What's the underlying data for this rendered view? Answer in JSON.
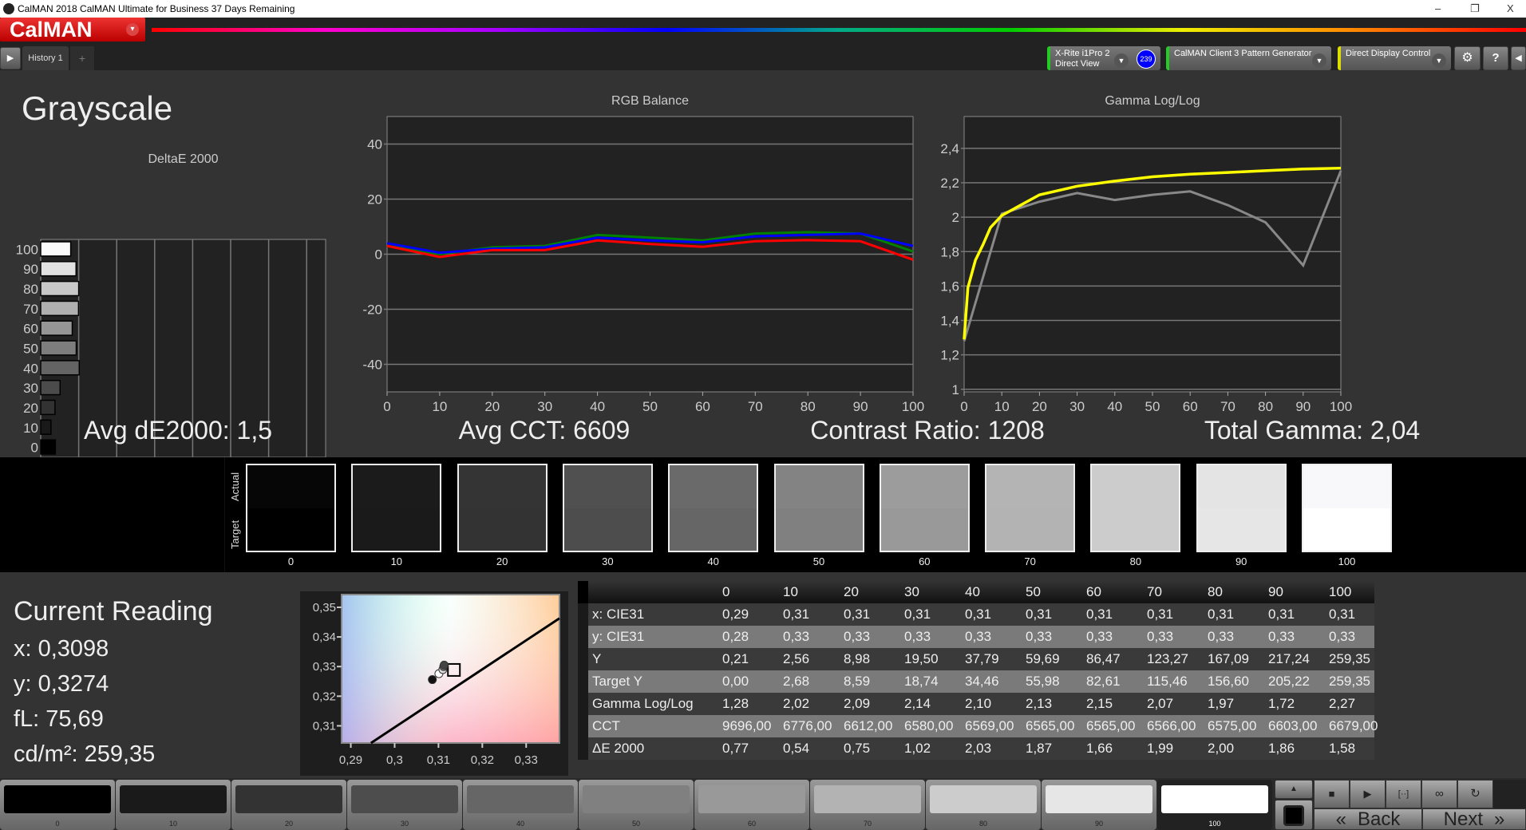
{
  "window": {
    "title": "CalMAN 2018 CalMAN Ultimate for Business 37 Days Remaining",
    "minimize": "–",
    "restore": "❐",
    "close": "X"
  },
  "logo": {
    "text": "CalMAN",
    "dropdown": "▾"
  },
  "tabs": {
    "items": [
      {
        "label": "History 1"
      }
    ],
    "add": "+",
    "play": "▶"
  },
  "devices": {
    "meter": {
      "line1": "X-Rite i1Pro 2",
      "line2": "Direct View",
      "badge": "239",
      "accent": "#22cc22"
    },
    "pattern": {
      "label": "CalMAN Client 3 Pattern Generator",
      "accent": "#22cc22"
    },
    "display": {
      "label": "Direct Display Control",
      "accent": "#dddd00"
    },
    "settings_icon": "gear-icon",
    "help": "?",
    "collapse": "◀"
  },
  "page": {
    "title": "Grayscale"
  },
  "stats": {
    "avg_de": "Avg dE2000: 1,5",
    "avg_cct": "Avg CCT: 6609",
    "contrast": "Contrast Ratio: 1208",
    "gamma": "Total Gamma: 2,04"
  },
  "chart_data": [
    {
      "type": "bar",
      "orientation": "horizontal",
      "title": "DeltaE 2000",
      "categories": [
        "0",
        "10",
        "20",
        "30",
        "40",
        "50",
        "60",
        "70",
        "80",
        "90",
        "100"
      ],
      "values": [
        0.77,
        0.54,
        0.75,
        1.02,
        2.03,
        1.87,
        1.66,
        1.99,
        2.0,
        1.86,
        1.58
      ],
      "xlim": [
        0,
        15
      ],
      "xticks": [
        "0",
        "2",
        "4",
        "6",
        "8",
        "10",
        "12",
        "14"
      ],
      "grid": true
    },
    {
      "type": "line",
      "title": "RGB Balance",
      "x": [
        0,
        10,
        20,
        30,
        40,
        50,
        60,
        70,
        80,
        90,
        100
      ],
      "ylim": [
        -50,
        50
      ],
      "yticks": [
        "40",
        "20",
        "0",
        "-20",
        "-40"
      ],
      "xticks": [
        "0",
        "10",
        "20",
        "30",
        "40",
        "50",
        "60",
        "70",
        "80",
        "90",
        "100"
      ],
      "grid": true,
      "series": [
        {
          "color": "#008000",
          "values": [
            3,
            0,
            2.5,
            3,
            7,
            6,
            5,
            7.5,
            8,
            7.5,
            1
          ]
        },
        {
          "color": "#0000ff",
          "values": [
            4,
            0.5,
            2,
            2.5,
            6,
            5,
            4.3,
            6.5,
            7,
            7.5,
            3
          ]
        },
        {
          "color": "#ff0000",
          "values": [
            3,
            -1,
            1.5,
            1.5,
            5,
            3.7,
            2.7,
            4.7,
            5.1,
            4.7,
            -2
          ]
        }
      ]
    },
    {
      "type": "line",
      "title": "Gamma Log/Log",
      "xlim": [
        0,
        100
      ],
      "ylim": [
        0.985,
        2.585
      ],
      "yticks": [
        "2,4",
        "2,2",
        "2",
        "1,8",
        "1,6",
        "1,4",
        "1,2",
        "1"
      ],
      "xticks": [
        "0",
        "10",
        "20",
        "30",
        "40",
        "50",
        "60",
        "70",
        "80",
        "90",
        "100"
      ],
      "grid": true,
      "series": [
        {
          "color": "#888888",
          "x": [
            0,
            10,
            20,
            30,
            40,
            50,
            60,
            70,
            80,
            90,
            100
          ],
          "values": [
            1.28,
            2.02,
            2.09,
            2.14,
            2.1,
            2.13,
            2.15,
            2.07,
            1.97,
            1.72,
            2.27
          ]
        },
        {
          "color": "#ffff00",
          "x": [
            0,
            1,
            3,
            5,
            7,
            10,
            15,
            20,
            30,
            40,
            50,
            60,
            70,
            80,
            90,
            100
          ],
          "values": [
            1.29,
            1.59,
            1.75,
            1.84,
            1.94,
            2.01,
            2.07,
            2.13,
            2.18,
            2.21,
            2.235,
            2.25,
            2.26,
            2.27,
            2.28,
            2.285
          ]
        }
      ]
    },
    {
      "type": "scatter",
      "xlim": [
        0.2879,
        0.3376
      ],
      "ylim": [
        0.3042,
        0.3543
      ],
      "xticks": [
        "0,29",
        "0,3",
        "0,31",
        "0,32",
        "0,33"
      ],
      "yticks": [
        "0,35",
        "0,34",
        "0,33",
        "0,32",
        "0,31"
      ],
      "points": [
        {
          "x": 0.3086,
          "y": 0.3256,
          "color": "#111111"
        },
        {
          "x": 0.3101,
          "y": 0.3276,
          "color": "#ffffff"
        },
        {
          "x": 0.311,
          "y": 0.329,
          "color": "#dddddd"
        },
        {
          "x": 0.3112,
          "y": 0.33,
          "color": "#888888"
        },
        {
          "x": 0.3113,
          "y": 0.3305,
          "color": "#444444"
        }
      ],
      "target": {
        "x": 0.3127,
        "y": 0.329
      },
      "locus": [
        [
          0.2946,
          0.3042
        ],
        [
          0.3378,
          0.3463
        ]
      ]
    }
  ],
  "swatches": {
    "actual_label": "Actual",
    "target_label": "Target",
    "items": [
      {
        "label": "0",
        "actual": "#060606",
        "target": "#000000"
      },
      {
        "label": "10",
        "actual": "#1b1b1b",
        "target": "#1a1a1a"
      },
      {
        "label": "20",
        "actual": "#343434",
        "target": "#333333"
      },
      {
        "label": "30",
        "actual": "#505050",
        "target": "#4d4d4d"
      },
      {
        "label": "40",
        "actual": "#6a6a6a",
        "target": "#666666"
      },
      {
        "label": "50",
        "actual": "#838383",
        "target": "#808080"
      },
      {
        "label": "60",
        "actual": "#9c9c9c",
        "target": "#999999"
      },
      {
        "label": "70",
        "actual": "#b4b4b4",
        "target": "#b3b3b3"
      },
      {
        "label": "80",
        "actual": "#cccccc",
        "target": "#cccccc"
      },
      {
        "label": "90",
        "actual": "#e4e4e4",
        "target": "#e6e6e6"
      },
      {
        "label": "100",
        "actual": "#f8f8fa",
        "target": "#ffffff"
      }
    ]
  },
  "reading": {
    "title": "Current Reading",
    "x": "x: 0,3098",
    "y": "y: 0,3274",
    "fl": "fL: 75,69",
    "cdm2": "cd/m²: 259,35"
  },
  "table": {
    "columns": [
      "0",
      "10",
      "20",
      "30",
      "40",
      "50",
      "60",
      "70",
      "80",
      "90",
      "100"
    ],
    "rows": [
      {
        "label": "x: CIE31",
        "values": [
          "0,29",
          "0,31",
          "0,31",
          "0,31",
          "0,31",
          "0,31",
          "0,31",
          "0,31",
          "0,31",
          "0,31",
          "0,31"
        ]
      },
      {
        "label": "y: CIE31",
        "values": [
          "0,28",
          "0,33",
          "0,33",
          "0,33",
          "0,33",
          "0,33",
          "0,33",
          "0,33",
          "0,33",
          "0,33",
          "0,33"
        ]
      },
      {
        "label": "Y",
        "values": [
          "0,21",
          "2,56",
          "8,98",
          "19,50",
          "37,79",
          "59,69",
          "86,47",
          "123,27",
          "167,09",
          "217,24",
          "259,35"
        ]
      },
      {
        "label": "Target Y",
        "values": [
          "0,00",
          "2,68",
          "8,59",
          "18,74",
          "34,46",
          "55,98",
          "82,61",
          "115,46",
          "156,60",
          "205,22",
          "259,35"
        ]
      },
      {
        "label": "Gamma Log/Log",
        "values": [
          "1,28",
          "2,02",
          "2,09",
          "2,14",
          "2,10",
          "2,13",
          "2,15",
          "2,07",
          "1,97",
          "1,72",
          "2,27"
        ]
      },
      {
        "label": "CCT",
        "values": [
          "9696,00",
          "6776,00",
          "6612,00",
          "6580,00",
          "6569,00",
          "6565,00",
          "6565,00",
          "6566,00",
          "6575,00",
          "6603,00",
          "6679,00"
        ]
      },
      {
        "label": "ΔE 2000",
        "values": [
          "0,77",
          "0,54",
          "0,75",
          "1,02",
          "2,03",
          "1,87",
          "1,66",
          "1,99",
          "2,00",
          "1,86",
          "1,58"
        ]
      }
    ]
  },
  "footer": {
    "selected": "100",
    "items": [
      {
        "label": "0",
        "color": "#000000"
      },
      {
        "label": "10",
        "color": "#1a1a1a"
      },
      {
        "label": "20",
        "color": "#333333"
      },
      {
        "label": "30",
        "color": "#4d4d4d"
      },
      {
        "label": "40",
        "color": "#666666"
      },
      {
        "label": "50",
        "color": "#808080"
      },
      {
        "label": "60",
        "color": "#999999"
      },
      {
        "label": "70",
        "color": "#b3b3b3"
      },
      {
        "label": "80",
        "color": "#cccccc"
      },
      {
        "label": "90",
        "color": "#e6e6e6"
      },
      {
        "label": "100",
        "color": "#ffffff"
      }
    ],
    "back": "Back",
    "next": "Next",
    "back_icon": "«",
    "next_icon": "»",
    "stop": "■",
    "play": "▶",
    "range": "[··]",
    "loop": "∞",
    "refresh": "↻",
    "up": "▲"
  }
}
